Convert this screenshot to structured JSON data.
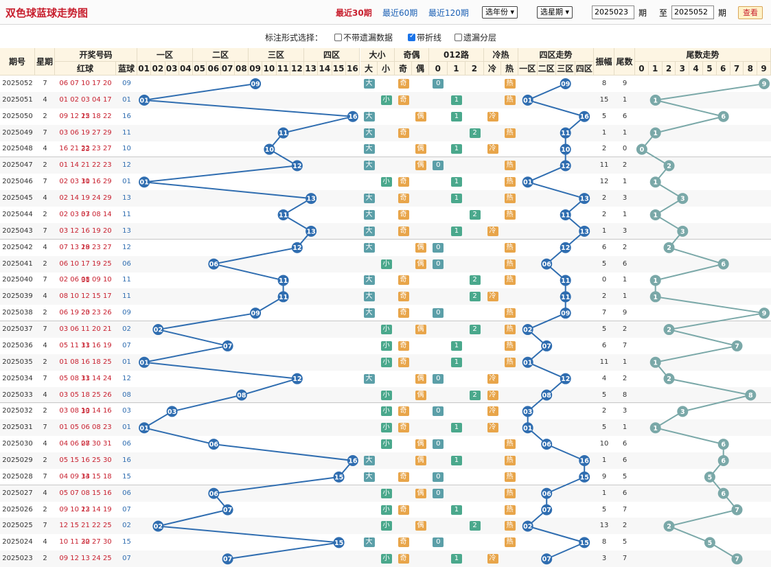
{
  "title": "双色球蓝球走势图",
  "links": [
    "最近30期",
    "最近60期",
    "最近120期"
  ],
  "year_select": "选年份",
  "weekday_select": "选星期",
  "from_issue": "2025023",
  "period_label": "期",
  "to_label": "至",
  "to_issue": "2025052",
  "query_button": "查看",
  "options": {
    "label": "标注形式选择：",
    "miss": "不带遗漏数据",
    "line": "带折线",
    "layer": "遗漏分层"
  },
  "headers": {
    "issue": "期号",
    "week": "星期",
    "draw": "开奖号码",
    "red": "红球",
    "blue": "蓝球",
    "z1": "一区",
    "z2": "二区",
    "z3": "三区",
    "z4": "四区",
    "size": "大小",
    "big": "大",
    "small": "小",
    "parity": "奇偶",
    "odd": "奇",
    "even": "偶",
    "route": "012路",
    "hot": "冷热",
    "cold": "冷",
    "heat": "热",
    "zone_trend": "四区走势",
    "zn": [
      "一区",
      "二区",
      "三区",
      "四区"
    ],
    "amp": "振幅",
    "tail": "尾数",
    "tail_trend": "尾数走势",
    "routes": [
      "0",
      "1",
      "2"
    ],
    "nums": [
      "01",
      "02",
      "03",
      "04",
      "05",
      "06",
      "07",
      "08",
      "09",
      "10",
      "11",
      "12",
      "13",
      "14",
      "15",
      "16"
    ],
    "tails": [
      "0",
      "1",
      "2",
      "3",
      "4",
      "5",
      "6",
      "7",
      "8",
      "9"
    ]
  },
  "colors": {
    "accent": "#c8202f",
    "line": "#2f6db0",
    "tail_line": "#7aa8a8",
    "ball": "#2f6db0",
    "ball_tail": "#7aa8a8",
    "tag_blue": "#5b9fa8",
    "tag_green": "#4aa88c",
    "tag_orange": "#e8a54a"
  },
  "rows": [
    {
      "issue": "2025052",
      "week": "7",
      "red": "06 07 10 17 20 26",
      "blue": "09",
      "zone": 3,
      "big": true,
      "odd": true,
      "route": 0,
      "hot": true,
      "amp": "8",
      "tail": "9"
    },
    {
      "issue": "2025051",
      "week": "4",
      "red": "01 02 03 04 17 22",
      "blue": "01",
      "zone": 1,
      "big": false,
      "odd": true,
      "route": 1,
      "hot": true,
      "amp": "15",
      "tail": "1"
    },
    {
      "issue": "2025050",
      "week": "2",
      "red": "09 12 15 18 22 33",
      "blue": "16",
      "zone": 4,
      "big": true,
      "odd": false,
      "route": 1,
      "hot": false,
      "amp": "5",
      "tail": "6"
    },
    {
      "issue": "2025049",
      "week": "7",
      "red": "03 06 19 27 29 33",
      "blue": "11",
      "zone": 3,
      "big": true,
      "odd": true,
      "route": 2,
      "hot": true,
      "amp": "1",
      "tail": "1"
    },
    {
      "issue": "2025048",
      "week": "4",
      "red": "16 21 22 23 27 31",
      "blue": "10",
      "zone": 3,
      "big": true,
      "odd": false,
      "route": 1,
      "hot": false,
      "amp": "2",
      "tail": "0"
    },
    {
      "issue": "2025047",
      "week": "2",
      "red": "01 14 21 22 23 31",
      "blue": "12",
      "zone": 3,
      "big": true,
      "odd": false,
      "route": 0,
      "hot": true,
      "amp": "11",
      "tail": "2"
    },
    {
      "issue": "2025046",
      "week": "7",
      "red": "02 03 10 16 29 33",
      "blue": "01",
      "zone": 1,
      "big": false,
      "odd": true,
      "route": 1,
      "hot": true,
      "amp": "12",
      "tail": "1"
    },
    {
      "issue": "2025045",
      "week": "4",
      "red": "02 14 19 24 29 33",
      "blue": "13",
      "zone": 4,
      "big": true,
      "odd": true,
      "route": 1,
      "hot": true,
      "amp": "2",
      "tail": "3"
    },
    {
      "issue": "2025044",
      "week": "2",
      "red": "02 03 07 08 14 28",
      "blue": "11",
      "zone": 3,
      "big": true,
      "odd": true,
      "route": 2,
      "hot": true,
      "amp": "2",
      "tail": "1"
    },
    {
      "issue": "2025043",
      "week": "7",
      "red": "03 12 16 19 20 28",
      "blue": "13",
      "zone": 4,
      "big": true,
      "odd": true,
      "route": 1,
      "hot": false,
      "amp": "1",
      "tail": "3"
    },
    {
      "issue": "2025042",
      "week": "4",
      "red": "07 13 19 23 27 33",
      "blue": "12",
      "zone": 3,
      "big": true,
      "odd": false,
      "route": 0,
      "hot": true,
      "amp": "6",
      "tail": "2"
    },
    {
      "issue": "2025041",
      "week": "2",
      "red": "06 10 17 19 25 31",
      "blue": "06",
      "zone": 2,
      "big": false,
      "odd": false,
      "route": 0,
      "hot": true,
      "amp": "5",
      "tail": "6"
    },
    {
      "issue": "2025040",
      "week": "7",
      "red": "02 06 08 09 10 24",
      "blue": "11",
      "zone": 3,
      "big": true,
      "odd": true,
      "route": 2,
      "hot": true,
      "amp": "0",
      "tail": "1"
    },
    {
      "issue": "2025039",
      "week": "4",
      "red": "08 10 12 15 17 23",
      "blue": "11",
      "zone": 3,
      "big": true,
      "odd": true,
      "route": 2,
      "hot": false,
      "amp": "2",
      "tail": "1"
    },
    {
      "issue": "2025038",
      "week": "2",
      "red": "06 19 20 23 26 33",
      "blue": "09",
      "zone": 3,
      "big": true,
      "odd": true,
      "route": 0,
      "hot": true,
      "amp": "7",
      "tail": "9"
    },
    {
      "issue": "2025037",
      "week": "7",
      "red": "03 06 11 20 21 31",
      "blue": "02",
      "zone": 1,
      "big": false,
      "odd": false,
      "route": 2,
      "hot": true,
      "amp": "5",
      "tail": "2"
    },
    {
      "issue": "2025036",
      "week": "4",
      "red": "05 11 13 16 19 32",
      "blue": "07",
      "zone": 2,
      "big": false,
      "odd": true,
      "route": 1,
      "hot": true,
      "amp": "6",
      "tail": "7"
    },
    {
      "issue": "2025035",
      "week": "2",
      "red": "01 08 16 18 25 31",
      "blue": "01",
      "zone": 1,
      "big": false,
      "odd": true,
      "route": 1,
      "hot": true,
      "amp": "11",
      "tail": "1"
    },
    {
      "issue": "2025034",
      "week": "7",
      "red": "05 08 13 14 24 26",
      "blue": "12",
      "zone": 3,
      "big": true,
      "odd": false,
      "route": 0,
      "hot": false,
      "amp": "4",
      "tail": "2"
    },
    {
      "issue": "2025033",
      "week": "4",
      "red": "03 05 18 25 26 33",
      "blue": "08",
      "zone": 2,
      "big": false,
      "odd": false,
      "route": 2,
      "hot": false,
      "amp": "5",
      "tail": "8"
    },
    {
      "issue": "2025032",
      "week": "2",
      "red": "03 08 10 14 16 21",
      "blue": "03",
      "zone": 1,
      "big": false,
      "odd": true,
      "route": 0,
      "hot": false,
      "amp": "2",
      "tail": "3"
    },
    {
      "issue": "2025031",
      "week": "7",
      "red": "01 05 06 08 23 28",
      "blue": "01",
      "zone": 1,
      "big": false,
      "odd": true,
      "route": 1,
      "hot": false,
      "amp": "5",
      "tail": "1"
    },
    {
      "issue": "2025030",
      "week": "4",
      "red": "04 06 07 30 31 33",
      "blue": "06",
      "zone": 2,
      "big": false,
      "odd": false,
      "route": 0,
      "hot": true,
      "amp": "10",
      "tail": "6"
    },
    {
      "issue": "2025029",
      "week": "2",
      "red": "05 15 16 25 30 33",
      "blue": "16",
      "zone": 4,
      "big": true,
      "odd": false,
      "route": 1,
      "hot": true,
      "amp": "1",
      "tail": "6"
    },
    {
      "issue": "2025028",
      "week": "7",
      "red": "04 09 14 15 18 25",
      "blue": "15",
      "zone": 4,
      "big": true,
      "odd": true,
      "route": 0,
      "hot": true,
      "amp": "9",
      "tail": "5"
    },
    {
      "issue": "2025027",
      "week": "4",
      "red": "05 07 08 15 16 23",
      "blue": "06",
      "zone": 2,
      "big": false,
      "odd": false,
      "route": 0,
      "hot": true,
      "amp": "1",
      "tail": "6"
    },
    {
      "issue": "2025026",
      "week": "2",
      "red": "09 10 12 14 19 32",
      "blue": "07",
      "zone": 2,
      "big": false,
      "odd": true,
      "route": 1,
      "hot": true,
      "amp": "5",
      "tail": "7"
    },
    {
      "issue": "2025025",
      "week": "7",
      "red": "12 15 21 22 25 30",
      "blue": "02",
      "zone": 1,
      "big": false,
      "odd": false,
      "route": 2,
      "hot": true,
      "amp": "13",
      "tail": "2"
    },
    {
      "issue": "2025024",
      "week": "4",
      "red": "10 11 22 27 30 32",
      "blue": "15",
      "zone": 4,
      "big": true,
      "odd": true,
      "route": 0,
      "hot": true,
      "amp": "8",
      "tail": "5"
    },
    {
      "issue": "2025023",
      "week": "2",
      "red": "09 12 13 24 25 29",
      "blue": "07",
      "zone": 2,
      "big": false,
      "odd": true,
      "route": 1,
      "hot": false,
      "amp": "3",
      "tail": "7"
    }
  ]
}
